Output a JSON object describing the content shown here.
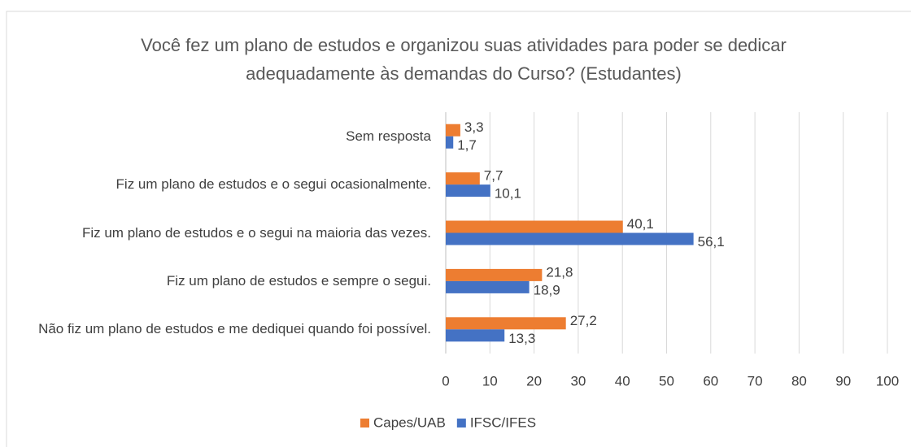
{
  "chart_data": {
    "type": "hbar",
    "title": "Você fez um plano de estudos e organizou suas atividades para poder se dedicar adequadamente às demandas do Curso? (Estudantes)",
    "categories": [
      "Sem resposta",
      "Fiz um plano de estudos e o segui ocasionalmente.",
      "Fiz um plano de estudos e o segui na maioria das vezes.",
      "Fiz um plano de estudos e sempre o segui.",
      "Não fiz um plano de estudos e me dediquei quando foi possível."
    ],
    "series": [
      {
        "name": "Capes/UAB",
        "color": "#ed7d31",
        "values": [
          3.3,
          7.7,
          40.1,
          21.8,
          27.2
        ],
        "value_labels": [
          "3,3",
          "7,7",
          "40,1",
          "21,8",
          "27,2"
        ]
      },
      {
        "name": "IFSC/IFES",
        "color": "#4472c4",
        "values": [
          1.7,
          10.1,
          56.1,
          18.9,
          13.3
        ],
        "value_labels": [
          "1,7",
          "10,1",
          "56,1",
          "18,9",
          "13,3"
        ]
      }
    ],
    "xlim": [
      0,
      100
    ],
    "xticks": [
      0,
      10,
      20,
      30,
      40,
      50,
      60,
      70,
      80,
      90,
      100
    ],
    "grid": true,
    "legend": "bottom"
  }
}
